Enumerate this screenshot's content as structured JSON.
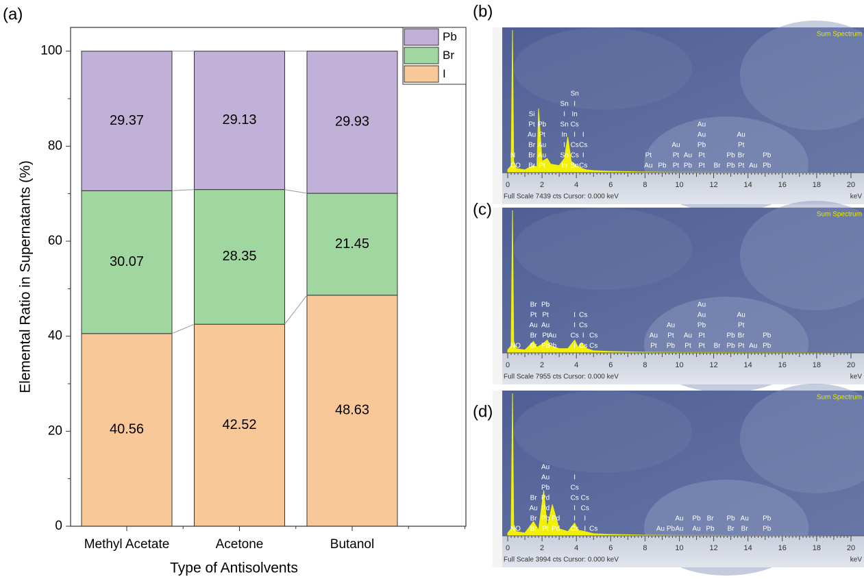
{
  "chart_data": [
    {
      "type": "stacked-bar",
      "panel_label": "(a)",
      "xlabel": "Type of Antisolvents",
      "ylabel": "Elemental Ratio in Supernatants (%)",
      "categories": [
        "Methyl Acetate",
        "Acetone",
        "Butanol"
      ],
      "series": [
        {
          "name": "I",
          "color": "#f9c898",
          "values": [
            40.56,
            42.52,
            48.63
          ]
        },
        {
          "name": "Br",
          "color": "#a0d7a0",
          "values": [
            30.07,
            28.35,
            21.45
          ]
        },
        {
          "name": "Pb",
          "color": "#c1b1d8",
          "values": [
            29.37,
            29.13,
            29.93
          ]
        }
      ],
      "ylim": [
        0,
        105
      ],
      "yticks": [
        0,
        20,
        40,
        60,
        80,
        100
      ],
      "legend": "upper right"
    },
    {
      "type": "spectrum",
      "panel_label": "(b)",
      "title": "Sum Spectrum",
      "footer": "Full Scale 7439 cts  Cursor: 0.000 keV",
      "xlabel": "keV",
      "xlim": [
        0,
        20.4
      ],
      "xticks": [
        0,
        2,
        4,
        6,
        8,
        10,
        12,
        14,
        16,
        18,
        20
      ],
      "ylim": [
        0,
        100
      ],
      "x": [
        0,
        0.2,
        0.28,
        0.35,
        0.5,
        1,
        1.5,
        1.7,
        1.8,
        2,
        2.3,
        2.5,
        3,
        3.3,
        3.5,
        3.7,
        4,
        4.3,
        4.6,
        5,
        6,
        8,
        10,
        12,
        14,
        16,
        18,
        20
      ],
      "values": [
        2,
        5,
        100,
        8,
        3,
        2,
        5,
        4,
        45,
        8,
        10,
        6,
        5,
        10,
        25,
        8,
        5,
        3,
        2,
        1.5,
        1,
        0.5,
        0.3,
        0.3,
        0.2,
        0.2,
        0.1,
        0
      ],
      "peaks": [
        {
          "x": 0.3,
          "labels": [
            "N",
            "C"
          ]
        },
        {
          "x": 0.6,
          "labels": [
            "O"
          ]
        },
        {
          "x": 1.4,
          "labels": [
            "Si",
            "Pt",
            "Au",
            "Br",
            "Br",
            "Br"
          ]
        },
        {
          "x": 2.0,
          "labels": [
            "Pb",
            "Pt",
            "Au",
            "Au",
            "Pt"
          ]
        },
        {
          "x": 3.3,
          "labels": [
            "Sn",
            "I",
            "Sn",
            "In",
            "I",
            "Sn",
            "In"
          ]
        },
        {
          "x": 3.9,
          "labels": [
            "Sn",
            "I",
            "In",
            "Cs",
            "I",
            "Cs",
            "Cs",
            "Sn"
          ]
        },
        {
          "x": 4.4,
          "labels": [
            "I",
            "Cs",
            "I",
            "Cs"
          ]
        },
        {
          "x": 8.2,
          "labels": [
            "Pt",
            "Au"
          ]
        },
        {
          "x": 9.0,
          "labels": [
            "Pb"
          ]
        },
        {
          "x": 9.8,
          "labels": [
            "Au",
            "Pt",
            "Pt"
          ]
        },
        {
          "x": 10.5,
          "labels": [
            "Au",
            "Pb"
          ]
        },
        {
          "x": 11.3,
          "labels": [
            "Au",
            "Au",
            "Pb",
            "Pt",
            "Pt"
          ]
        },
        {
          "x": 12.2,
          "labels": [
            "Br"
          ]
        },
        {
          "x": 13.0,
          "labels": [
            "Pb",
            "Pb"
          ]
        },
        {
          "x": 13.6,
          "labels": [
            "Au",
            "Pt",
            "Br",
            "Pt"
          ]
        },
        {
          "x": 14.3,
          "labels": [
            "Au"
          ]
        },
        {
          "x": 15.1,
          "labels": [
            "Pb",
            "Pb"
          ]
        }
      ]
    },
    {
      "type": "spectrum",
      "panel_label": "(c)",
      "title": "Sum Spectrum",
      "footer": "Full Scale 7955 cts  Cursor: 0.000 keV",
      "xlabel": "keV",
      "xlim": [
        0,
        20.4
      ],
      "xticks": [
        0,
        2,
        4,
        6,
        8,
        10,
        12,
        14,
        16,
        18,
        20
      ],
      "ylim": [
        0,
        100
      ],
      "x": [
        0,
        0.2,
        0.28,
        0.35,
        0.5,
        1,
        1.5,
        1.7,
        2,
        2.3,
        2.5,
        3,
        3.5,
        3.9,
        4.1,
        4.3,
        4.6,
        5,
        6,
        8,
        10,
        12,
        14,
        16,
        18,
        20
      ],
      "values": [
        2,
        5,
        100,
        8,
        3,
        2,
        8,
        4,
        6,
        9,
        5,
        3,
        3,
        9,
        4,
        7,
        3,
        1.5,
        1,
        0.5,
        0.3,
        0.3,
        0.2,
        0.2,
        0.1,
        0
      ],
      "peaks": [
        {
          "x": 0.3,
          "labels": [
            "N"
          ]
        },
        {
          "x": 0.6,
          "labels": [
            "O"
          ]
        },
        {
          "x": 1.5,
          "labels": [
            "Br",
            "Pt",
            "Au",
            "Br",
            "Br"
          ]
        },
        {
          "x": 2.2,
          "labels": [
            "Pb",
            "Pt",
            "Au",
            "Pt",
            "Pb"
          ]
        },
        {
          "x": 2.6,
          "labels": [
            "Au",
            "Pb"
          ]
        },
        {
          "x": 3.9,
          "labels": [
            "I",
            "I",
            "Cs",
            "I"
          ]
        },
        {
          "x": 4.4,
          "labels": [
            "Cs",
            "Cs",
            "I",
            "Cs"
          ]
        },
        {
          "x": 5.0,
          "labels": [
            "Cs",
            "Cs"
          ]
        },
        {
          "x": 8.5,
          "labels": [
            "Au",
            "Pt"
          ]
        },
        {
          "x": 9.5,
          "labels": [
            "Au",
            "Pt",
            "Pb"
          ]
        },
        {
          "x": 10.5,
          "labels": [
            "Au",
            "Pt"
          ]
        },
        {
          "x": 11.3,
          "labels": [
            "Au",
            "Au",
            "Pb",
            "Pt",
            "Pt"
          ]
        },
        {
          "x": 12.2,
          "labels": [
            "Br"
          ]
        },
        {
          "x": 13.0,
          "labels": [
            "Pb",
            "Pb"
          ]
        },
        {
          "x": 13.6,
          "labels": [
            "Au",
            "Pt",
            "Br",
            "Pt"
          ]
        },
        {
          "x": 14.3,
          "labels": [
            "Au"
          ]
        },
        {
          "x": 15.1,
          "labels": [
            "Pb",
            "Pb"
          ]
        }
      ]
    },
    {
      "type": "spectrum",
      "panel_label": "(d)",
      "title": "Sum Spectrum",
      "footer": "Full Scale 3994 cts  Cursor: 0.000 keV",
      "xlabel": "keV",
      "xlim": [
        0,
        20.4
      ],
      "xticks": [
        0,
        2,
        4,
        6,
        8,
        10,
        12,
        14,
        16,
        18,
        20
      ],
      "ylim": [
        0,
        100
      ],
      "x": [
        0,
        0.2,
        0.28,
        0.35,
        0.5,
        1,
        1.5,
        1.8,
        2.1,
        2.3,
        2.6,
        3,
        3.5,
        3.9,
        4.1,
        4.5,
        5,
        6,
        8,
        10,
        12,
        14,
        16,
        18,
        20
      ],
      "values": [
        2,
        5,
        100,
        8,
        3,
        2,
        10,
        4,
        32,
        6,
        22,
        5,
        3,
        9,
        4,
        3,
        1.5,
        1,
        0.5,
        0.3,
        0.3,
        0.2,
        0.2,
        0.1,
        0
      ],
      "peaks": [
        {
          "x": 0.3,
          "labels": [
            "N"
          ]
        },
        {
          "x": 0.6,
          "labels": [
            "O"
          ]
        },
        {
          "x": 1.5,
          "labels": [
            "Br",
            "Au",
            "Br",
            "Br"
          ]
        },
        {
          "x": 2.2,
          "labels": [
            "Au",
            "Au",
            "Pb",
            "Pd",
            "Pd",
            "Pb",
            "Pt"
          ]
        },
        {
          "x": 2.8,
          "labels": [
            "Pd",
            "Pd"
          ]
        },
        {
          "x": 3.9,
          "labels": [
            "I",
            "Cs",
            "Cs",
            "I",
            "I",
            "Cs"
          ]
        },
        {
          "x": 4.5,
          "labels": [
            "Cs",
            "Cs",
            "I",
            "I"
          ]
        },
        {
          "x": 5.0,
          "labels": [
            "Cs"
          ]
        },
        {
          "x": 8.9,
          "labels": [
            "Au"
          ]
        },
        {
          "x": 9.5,
          "labels": [
            "Pb"
          ]
        },
        {
          "x": 10.0,
          "labels": [
            "Au",
            "Au"
          ]
        },
        {
          "x": 11.0,
          "labels": [
            "Pb",
            "Au"
          ]
        },
        {
          "x": 11.8,
          "labels": [
            "Br",
            "Pb"
          ]
        },
        {
          "x": 13.0,
          "labels": [
            "Pb",
            "Br"
          ]
        },
        {
          "x": 13.8,
          "labels": [
            "Au",
            "Br"
          ]
        },
        {
          "x": 15.1,
          "labels": [
            "Pb",
            "Pb"
          ]
        }
      ]
    }
  ]
}
